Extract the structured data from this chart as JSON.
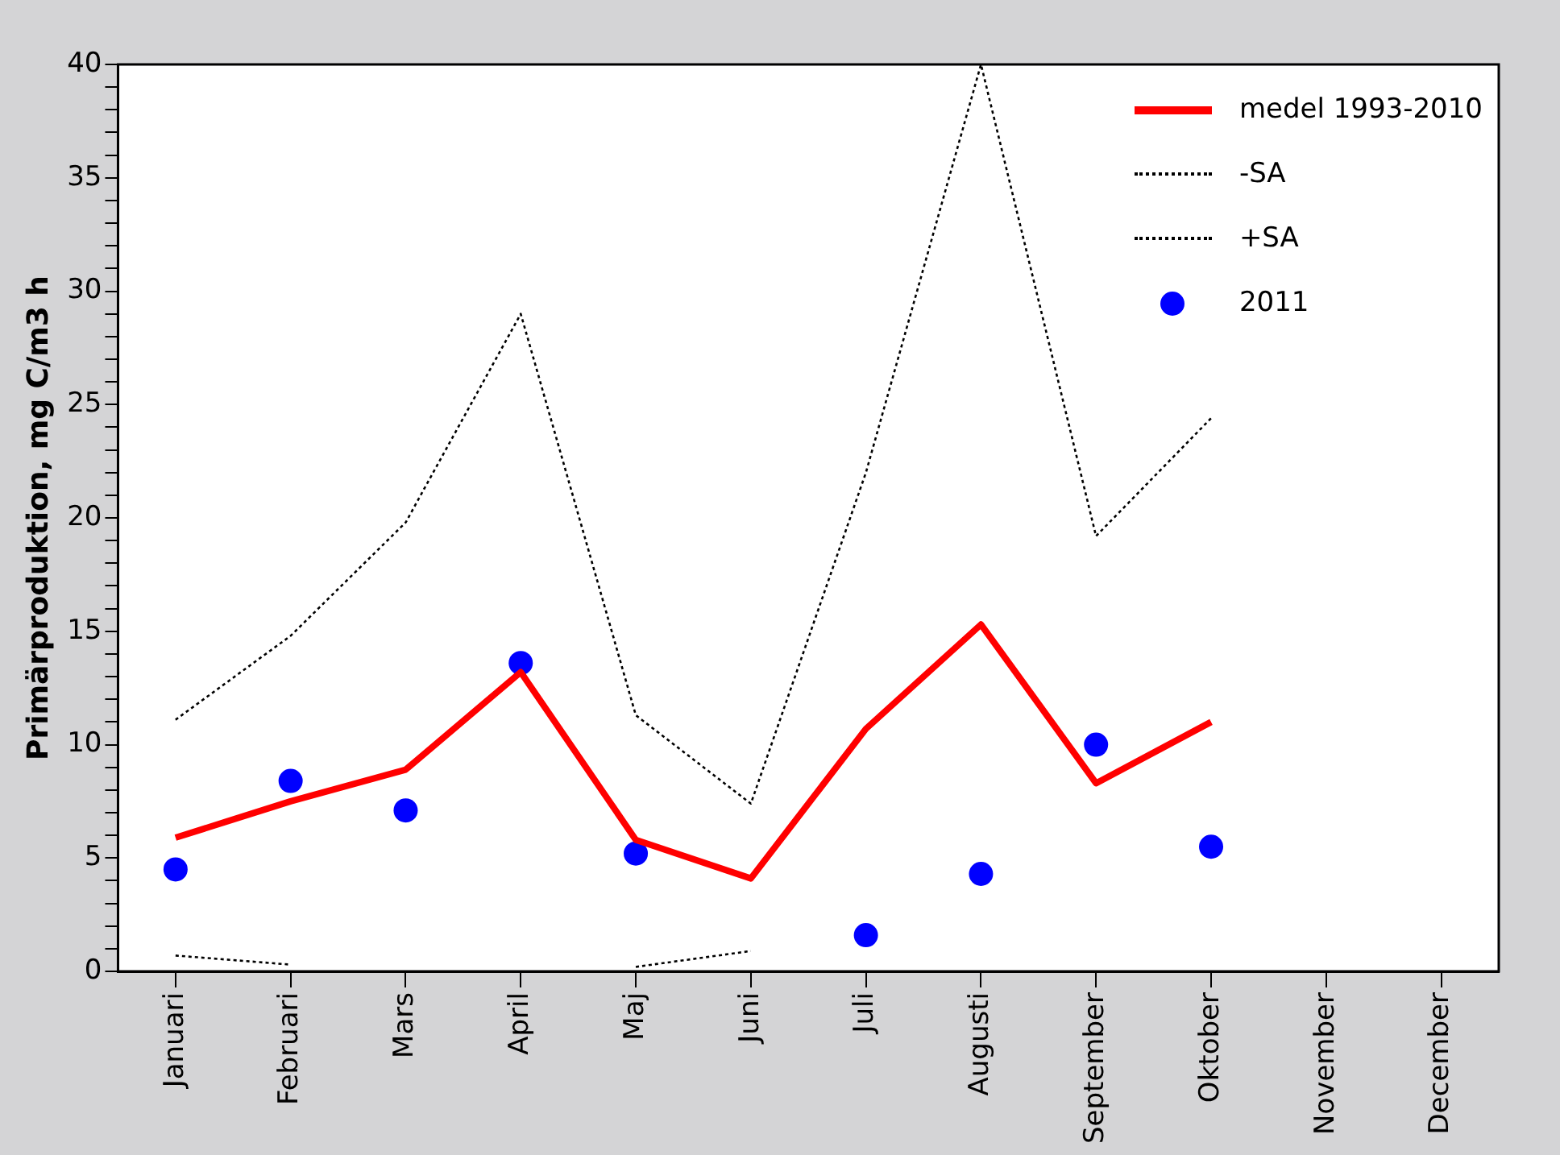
{
  "chart_data": {
    "type": "line",
    "ylabel": "Primärproduktion, mg C/m3 h",
    "categories": [
      "Januari",
      "Februari",
      "Mars",
      "April",
      "Maj",
      "Juni",
      "Juli",
      "Augusti",
      "September",
      "Oktober",
      "November",
      "December"
    ],
    "ylim": [
      0,
      40
    ],
    "yticks": [
      0,
      {
        "value": 1,
        "label": null
      },
      {
        "value": 2,
        "label": null
      },
      {
        "value": 3,
        "label": null
      },
      {
        "value": 4,
        "label": null
      },
      5,
      {
        "value": 6,
        "label": null
      },
      {
        "value": 7,
        "label": null
      },
      {
        "value": 8,
        "label": null
      },
      {
        "value": 9,
        "label": null
      },
      10,
      {
        "value": 11,
        "label": null
      },
      {
        "value": 12,
        "label": null
      },
      {
        "value": 13,
        "label": null
      },
      {
        "value": 14,
        "label": null
      },
      15,
      {
        "value": 16,
        "label": null
      },
      {
        "value": 17,
        "label": null
      },
      {
        "value": 18,
        "label": null
      },
      {
        "value": 19,
        "label": null
      },
      20,
      {
        "value": 21,
        "label": null
      },
      {
        "value": 22,
        "label": null
      },
      {
        "value": 23,
        "label": null
      },
      {
        "value": 24,
        "label": null
      },
      25,
      {
        "value": 26,
        "label": null
      },
      {
        "value": 27,
        "label": null
      },
      {
        "value": 28,
        "label": null
      },
      {
        "value": 29,
        "label": null
      },
      30,
      {
        "value": 31,
        "label": null
      },
      {
        "value": 32,
        "label": null
      },
      {
        "value": 33,
        "label": null
      },
      {
        "value": 34,
        "label": null
      },
      35,
      {
        "value": 36,
        "label": null
      },
      {
        "value": 37,
        "label": null
      },
      {
        "value": 38,
        "label": null
      },
      {
        "value": 39,
        "label": null
      },
      40
    ],
    "legend": "top right",
    "grid": false,
    "series": [
      {
        "name": "medel 1993-2010",
        "color": "#ff0000",
        "line_style": "solid",
        "marker": "none",
        "values": [
          5.9,
          7.5,
          8.9,
          13.2,
          5.8,
          4.1,
          10.7,
          15.3,
          8.3,
          11.0,
          null,
          null
        ]
      },
      {
        "name": "-SA",
        "color": "#000000",
        "line_style": "dotted",
        "marker": "none",
        "values": [
          0.7,
          0.3,
          null,
          null,
          0.2,
          0.9,
          null,
          null,
          null,
          null,
          null,
          null
        ]
      },
      {
        "name": "+SA",
        "color": "#000000",
        "line_style": "dotted",
        "marker": "none",
        "values": [
          11.1,
          14.8,
          19.8,
          29.0,
          11.3,
          7.4,
          22.0,
          40,
          19.2,
          24.4,
          null,
          null
        ]
      },
      {
        "name": "2011",
        "type": "scatter",
        "color": "#0000ff",
        "marker": "circle",
        "values": [
          4.5,
          8.4,
          7.1,
          13.6,
          5.2,
          null,
          1.6,
          4.3,
          10.0,
          5.5,
          null,
          null
        ]
      }
    ]
  }
}
